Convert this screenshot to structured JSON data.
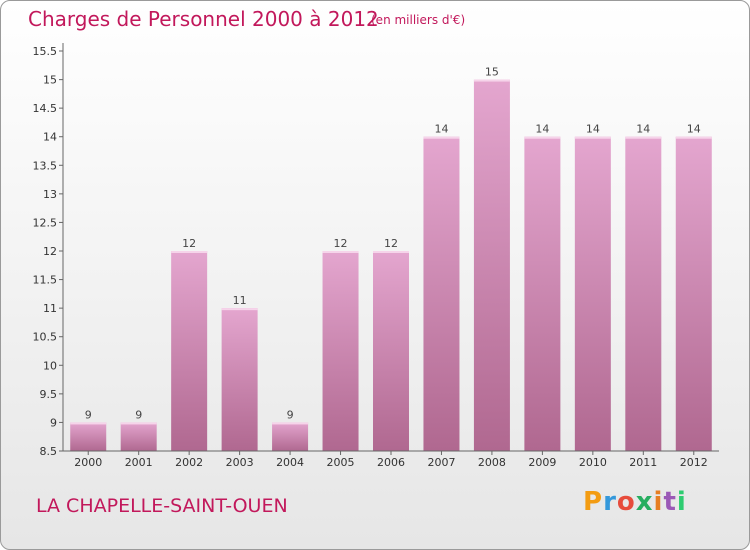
{
  "header": {
    "title": "Charges de Personnel 2000 à 2012",
    "unit": "(en milliers d'€)"
  },
  "footer": {
    "commune": "LA CHAPELLE-SAINT-OUEN",
    "logo": "Proxiti"
  },
  "colors": {
    "title": "#c2185b",
    "bar_top": "#e4a6cf",
    "bar_bottom": "#b06890",
    "logo_letters": [
      "#f39c12",
      "#3498db",
      "#e74c3c",
      "#27ae60",
      "#e67e22",
      "#9b59b6",
      "#2ecc71"
    ]
  },
  "chart_data": {
    "type": "bar",
    "title": "Charges de Personnel 2000 à 2012",
    "categories": [
      "2000",
      "2001",
      "2002",
      "2003",
      "2004",
      "2005",
      "2006",
      "2007",
      "2008",
      "2009",
      "2010",
      "2011",
      "2012"
    ],
    "values": [
      9,
      9,
      12,
      11,
      9,
      12,
      12,
      14,
      15,
      14,
      14,
      14,
      14
    ],
    "ylim": [
      8.5,
      15.5
    ],
    "yticks": [
      "8.5",
      "9",
      "9.5",
      "10",
      "10.5",
      "11",
      "11.5",
      "12",
      "12.5",
      "13",
      "13.5",
      "14",
      "14.5",
      "15",
      "15.5"
    ],
    "grid": false,
    "legend": "none"
  }
}
